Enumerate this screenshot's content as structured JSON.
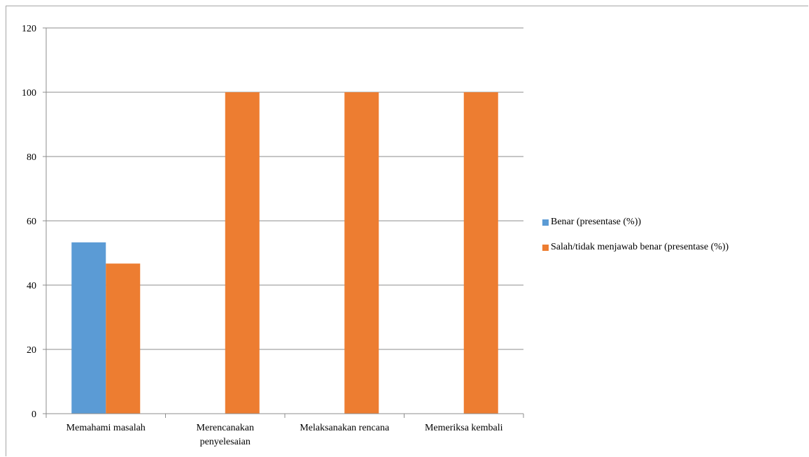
{
  "chart_data": {
    "type": "bar",
    "categories": [
      "Memahami masalah",
      "Merencanakan penyelesaian",
      "Melaksanakan rencana",
      "Memeriksa kembali"
    ],
    "category_lines": [
      [
        "Memahami masalah"
      ],
      [
        "Merencanakan",
        "penyelesaian"
      ],
      [
        "Melaksanakan rencana"
      ],
      [
        "Memeriksa kembali"
      ]
    ],
    "series": [
      {
        "name": "Benar (presentase (%))",
        "values": [
          53.3,
          0,
          0,
          0
        ],
        "color": "#5b9bd5"
      },
      {
        "name": "Salah/tidak menjawab benar (presentase (%))",
        "values": [
          46.7,
          100,
          100,
          100
        ],
        "color": "#ed7d31"
      }
    ],
    "y_ticks": [
      0,
      20,
      40,
      60,
      80,
      100,
      120
    ],
    "ylim": [
      0,
      120
    ],
    "grid": true,
    "legend_position": "right",
    "title": "",
    "xlabel": "",
    "ylabel": ""
  }
}
